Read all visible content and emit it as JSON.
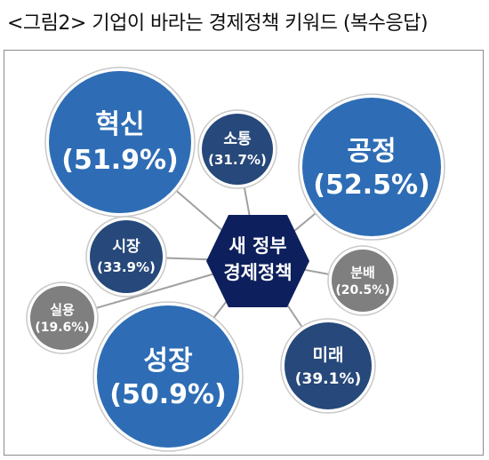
{
  "title": "<그림2> 기업이 바라는 경제정책 키워드 (복수응답)",
  "center": {
    "line1": "새 정부",
    "line2": "경제정책",
    "color": "#0d1f5c"
  },
  "colors": {
    "large": "#2e6db5",
    "medium": "#26487a",
    "small": "#7f7f7f",
    "connector": "#a0a0a0"
  },
  "keywords": [
    {
      "label": "혁신",
      "value": "(51.9%)",
      "size": "large"
    },
    {
      "label": "소통",
      "value": "(31.7%)",
      "size": "medium"
    },
    {
      "label": "공정",
      "value": "(52.5%)",
      "size": "large"
    },
    {
      "label": "시장",
      "value": "(33.9%)",
      "size": "medium"
    },
    {
      "label": "분배",
      "value": "(20.5%)",
      "size": "small"
    },
    {
      "label": "실용",
      "value": "(19.6%)",
      "size": "small"
    },
    {
      "label": "성장",
      "value": "(50.9%)",
      "size": "large"
    },
    {
      "label": "미래",
      "value": "(39.1%)",
      "size": "medium"
    }
  ]
}
